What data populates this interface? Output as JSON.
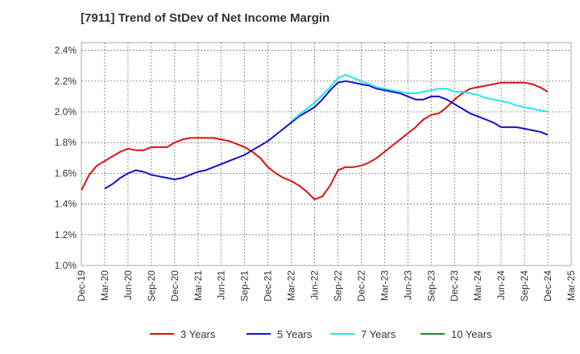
{
  "chart_data": {
    "type": "line",
    "title": "[7911]  Trend of StDev of Net Income Margin",
    "xlabel": "",
    "ylabel": "",
    "x_ticks": [
      "Dec-19",
      "Mar-20",
      "Jun-20",
      "Sep-20",
      "Dec-20",
      "Mar-21",
      "Jun-21",
      "Sep-21",
      "Dec-21",
      "Mar-22",
      "Jun-22",
      "Sep-22",
      "Dec-22",
      "Mar-23",
      "Jun-23",
      "Sep-23",
      "Dec-23",
      "Mar-24",
      "Jun-24",
      "Sep-24",
      "Dec-24",
      "Mar-25"
    ],
    "y_ticks": [
      "1.0%",
      "1.2%",
      "1.4%",
      "1.6%",
      "1.8%",
      "2.0%",
      "2.2%",
      "2.4%"
    ],
    "ylim": [
      1.0,
      2.45
    ],
    "grid": true,
    "legend_position": "bottom",
    "series": [
      {
        "name": "3 Years",
        "color": "#dd1111",
        "x": [
          "Dec-19",
          "Jan-20",
          "Feb-20",
          "Mar-20",
          "Apr-20",
          "May-20",
          "Jun-20",
          "Jul-20",
          "Aug-20",
          "Sep-20",
          "Oct-20",
          "Nov-20",
          "Dec-20",
          "Jan-21",
          "Feb-21",
          "Mar-21",
          "Apr-21",
          "May-21",
          "Jun-21",
          "Jul-21",
          "Aug-21",
          "Sep-21",
          "Oct-21",
          "Nov-21",
          "Dec-21",
          "Jan-22",
          "Feb-22",
          "Mar-22",
          "Apr-22",
          "May-22",
          "Jun-22",
          "Jul-22",
          "Aug-22",
          "Sep-22",
          "Oct-22",
          "Nov-22",
          "Dec-22",
          "Jan-23",
          "Feb-23",
          "Mar-23",
          "Apr-23",
          "May-23",
          "Jun-23",
          "Jul-23",
          "Aug-23",
          "Sep-23",
          "Oct-23",
          "Nov-23",
          "Dec-23",
          "Jan-24",
          "Feb-24",
          "Mar-24",
          "Apr-24",
          "May-24",
          "Jun-24",
          "Jul-24",
          "Aug-24",
          "Sep-24",
          "Oct-24",
          "Nov-24",
          "Dec-24"
        ],
        "values": [
          1.49,
          1.59,
          1.65,
          1.68,
          1.71,
          1.74,
          1.76,
          1.75,
          1.75,
          1.77,
          1.77,
          1.77,
          1.8,
          1.82,
          1.83,
          1.83,
          1.83,
          1.83,
          1.82,
          1.81,
          1.79,
          1.77,
          1.74,
          1.7,
          1.64,
          1.6,
          1.57,
          1.55,
          1.52,
          1.48,
          1.43,
          1.45,
          1.52,
          1.62,
          1.64,
          1.64,
          1.65,
          1.67,
          1.7,
          1.74,
          1.78,
          1.82,
          1.86,
          1.9,
          1.95,
          1.98,
          1.99,
          2.03,
          2.08,
          2.12,
          2.15,
          2.16,
          2.17,
          2.18,
          2.19,
          2.19,
          2.19,
          2.19,
          2.18,
          2.16,
          2.13
        ]
      },
      {
        "name": "5 Years",
        "color": "#1111cc",
        "x": [
          "Mar-20",
          "Apr-20",
          "May-20",
          "Jun-20",
          "Jul-20",
          "Aug-20",
          "Sep-20",
          "Oct-20",
          "Nov-20",
          "Dec-20",
          "Jan-21",
          "Feb-21",
          "Mar-21",
          "Apr-21",
          "May-21",
          "Jun-21",
          "Jul-21",
          "Aug-21",
          "Sep-21",
          "Oct-21",
          "Nov-21",
          "Dec-21",
          "Jan-22",
          "Feb-22",
          "Mar-22",
          "Apr-22",
          "May-22",
          "Jun-22",
          "Jul-22",
          "Aug-22",
          "Sep-22",
          "Oct-22",
          "Nov-22",
          "Dec-22",
          "Jan-23",
          "Feb-23",
          "Mar-23",
          "Apr-23",
          "May-23",
          "Jun-23",
          "Jul-23",
          "Aug-23",
          "Sep-23",
          "Oct-23",
          "Nov-23",
          "Dec-23",
          "Jan-24",
          "Feb-24",
          "Mar-24",
          "Apr-24",
          "May-24",
          "Jun-24",
          "Jul-24",
          "Aug-24",
          "Sep-24",
          "Oct-24",
          "Nov-24",
          "Dec-24"
        ],
        "values": [
          1.5,
          1.53,
          1.57,
          1.6,
          1.62,
          1.61,
          1.59,
          1.58,
          1.57,
          1.56,
          1.57,
          1.59,
          1.61,
          1.62,
          1.64,
          1.66,
          1.68,
          1.7,
          1.72,
          1.75,
          1.78,
          1.81,
          1.85,
          1.89,
          1.93,
          1.97,
          2.0,
          2.03,
          2.08,
          2.14,
          2.19,
          2.2,
          2.19,
          2.18,
          2.17,
          2.15,
          2.14,
          2.13,
          2.12,
          2.1,
          2.08,
          2.08,
          2.1,
          2.1,
          2.08,
          2.05,
          2.02,
          1.99,
          1.97,
          1.95,
          1.93,
          1.9,
          1.9,
          1.9,
          1.89,
          1.88,
          1.87,
          1.85
        ]
      },
      {
        "name": "7 Years",
        "color": "#22e6ee",
        "x": [
          "Mar-22",
          "Apr-22",
          "May-22",
          "Jun-22",
          "Jul-22",
          "Aug-22",
          "Sep-22",
          "Oct-22",
          "Nov-22",
          "Dec-22",
          "Jan-23",
          "Feb-23",
          "Mar-23",
          "Apr-23",
          "May-23",
          "Jun-23",
          "Jul-23",
          "Aug-23",
          "Sep-23",
          "Oct-23",
          "Nov-23",
          "Dec-23",
          "Jan-24",
          "Feb-24",
          "Mar-24",
          "Apr-24",
          "May-24",
          "Jun-24",
          "Jul-24",
          "Aug-24",
          "Sep-24",
          "Oct-24",
          "Nov-24",
          "Dec-24"
        ],
        "values": [
          1.94,
          1.98,
          2.02,
          2.06,
          2.11,
          2.16,
          2.22,
          2.24,
          2.22,
          2.2,
          2.18,
          2.16,
          2.15,
          2.14,
          2.13,
          2.12,
          2.12,
          2.13,
          2.14,
          2.15,
          2.15,
          2.13,
          2.13,
          2.12,
          2.11,
          2.09,
          2.08,
          2.07,
          2.06,
          2.04,
          2.03,
          2.02,
          2.01,
          2.0
        ]
      },
      {
        "name": "10 Years",
        "color": "#228822",
        "x": [],
        "values": []
      }
    ]
  }
}
